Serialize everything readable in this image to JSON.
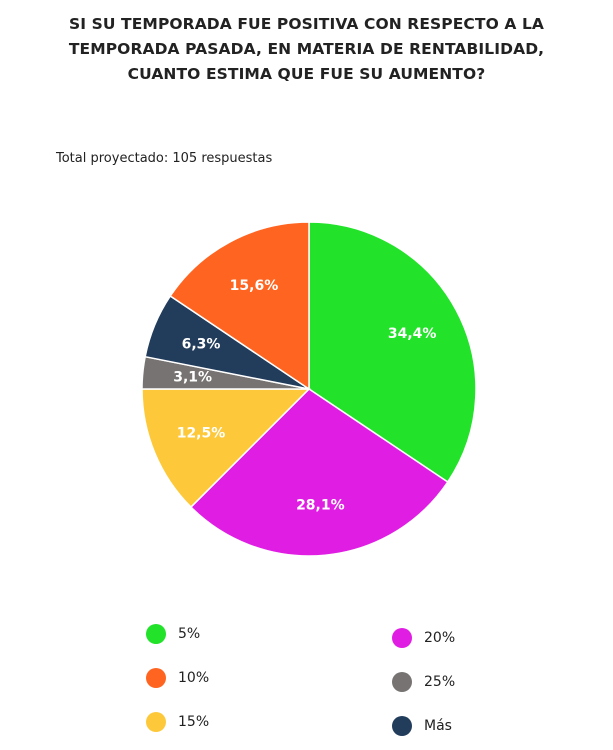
{
  "chart_data": {
    "type": "pie",
    "title_lines": [
      "SI SU TEMPORADA FUE POSITIVA CON RESPECTO A LA",
      "TEMPORADA PASADA, EN MATERIA DE RENTABILIDAD,",
      "CUANTO ESTIMA QUE FUE SU AUMENTO?"
    ],
    "subtitle": "Total proyectado: 105 respuestas",
    "slices": [
      {
        "label": "5%",
        "value": 34.4,
        "display": "34,4%",
        "color": "#22e22a"
      },
      {
        "label": "20%",
        "value": 28.1,
        "display": "28,1%",
        "color": "#e01ee3"
      },
      {
        "label": "15%",
        "value": 12.5,
        "display": "12,5%",
        "color": "#fdc93b"
      },
      {
        "label": "25%",
        "value": 3.1,
        "display": "3,1%",
        "color": "#767372"
      },
      {
        "label": "Más",
        "value": 6.3,
        "display": "6,3%",
        "color": "#223c5c"
      },
      {
        "label": "10%",
        "value": 15.6,
        "display": "15,6%",
        "color": "#ff6420"
      }
    ],
    "legend": [
      {
        "label": "5%",
        "color": "#22e22a"
      },
      {
        "label": "20%",
        "color": "#e01ee3"
      },
      {
        "label": "10%",
        "color": "#ff6420"
      },
      {
        "label": "25%",
        "color": "#767372"
      },
      {
        "label": "15%",
        "color": "#fdc93b"
      },
      {
        "label": "Más",
        "color": "#223c5c"
      }
    ],
    "legend_placement": "bottom"
  }
}
